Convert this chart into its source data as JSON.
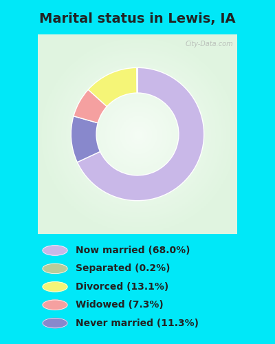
{
  "title": "Marital status in Lewis, IA",
  "slices": [
    68.0,
    11.3,
    7.3,
    13.1,
    0.2
  ],
  "slice_order_labels": [
    "Now married",
    "Never married",
    "Widowed",
    "Divorced",
    "Separated"
  ],
  "colors": [
    "#c9b8e8",
    "#8888cc",
    "#f5a0a0",
    "#f5f577",
    "#b8cc9a"
  ],
  "legend_labels": [
    "Now married (68.0%)",
    "Separated (0.2%)",
    "Divorced (13.1%)",
    "Widowed (7.3%)",
    "Never married (11.3%)"
  ],
  "legend_colors": [
    "#c9b8e8",
    "#b8cc9a",
    "#f5f577",
    "#f5a0a0",
    "#8888cc"
  ],
  "bg_cyan": "#00e8f8",
  "bg_chart": "#e2f2e8",
  "title_color": "#222222",
  "watermark": "City-Data.com",
  "startangle": 90,
  "donut_width": 0.38,
  "title_fontsize": 14,
  "legend_fontsize": 10
}
